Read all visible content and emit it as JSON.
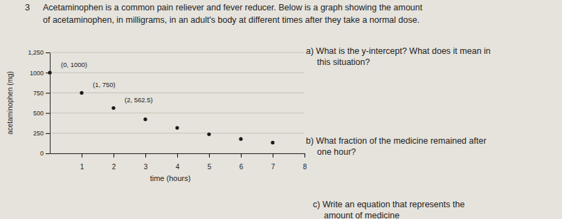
{
  "chart_data": {
    "type": "scatter",
    "x_label": "time (hours)",
    "y_label": "acetaminophen (mg)",
    "x": [
      0,
      1,
      2,
      3,
      4,
      5,
      6,
      7
    ],
    "values": [
      1000,
      750,
      562.5,
      422,
      316,
      237,
      178,
      133
    ],
    "value_labels": [
      "(0, 1000)",
      "(1, 750)",
      "(2, 562.5)",
      null,
      null,
      null,
      null,
      null
    ],
    "color": "#1a1a1a",
    "marker": "circle",
    "xlim": [
      0,
      8
    ],
    "xticks": [
      1,
      2,
      3,
      4,
      5,
      6,
      7,
      8
    ],
    "ylim": [
      0,
      1250
    ],
    "yticks": [
      0,
      250,
      500,
      750,
      1000,
      {
        "value": 1250,
        "label": "1,250"
      }
    ],
    "grid": true
  },
  "document": {
    "number": "3",
    "intro": [
      "Acetaminophen is a common pain reliever and fever reducer. Below is a graph showing the amount",
      "of acetaminophen, in milligrams, in an adult's body at different times after they take a normal dose."
    ],
    "questions": [
      [
        "a) What is the y-intercept? What does it mean in",
        "this situation?"
      ],
      [
        "b) What fraction of the medicine remained after",
        "one hour?"
      ],
      [
        "c) Write an equation that represents the",
        "amount of medicine"
      ]
    ]
  }
}
